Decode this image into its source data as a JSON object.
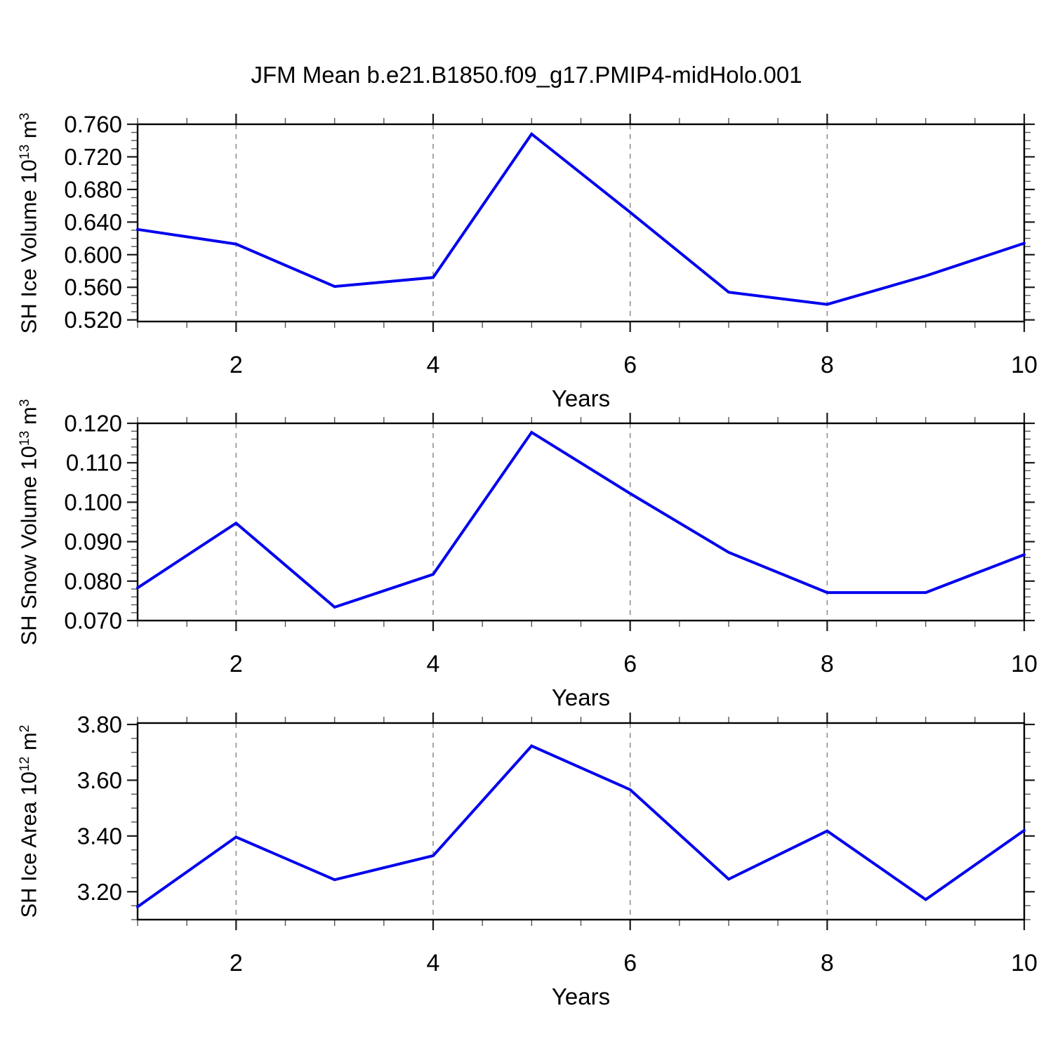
{
  "title": "JFM Mean b.e21.B1850.f09_g17.PMIP4-midHolo.001",
  "colors": {
    "line": "#0000ee",
    "grid": "#8a8a8a",
    "axis": "#000000",
    "minor_tick": "#555555",
    "major_tick": "#1a1a1a"
  },
  "x_axis": {
    "label": "Years",
    "min": 1,
    "max": 10,
    "major_ticks": [
      2,
      4,
      6,
      8,
      10
    ],
    "minor_step": 0.5,
    "gridline_years": [
      2,
      4,
      6,
      8
    ]
  },
  "chart_data": [
    {
      "type": "line",
      "ylabel": "SH Ice Volume 10^13 m^3",
      "ylabel_parts": {
        "base": "SH Ice Volume 10",
        "exp": "13",
        "unit": " m",
        "unit_exp": "3"
      },
      "x": [
        1,
        2,
        3,
        4,
        5,
        6,
        7,
        8,
        9,
        10
      ],
      "values": [
        0.631,
        0.613,
        0.561,
        0.572,
        0.748,
        0.652,
        0.554,
        0.539,
        0.574,
        0.614
      ],
      "ylim": [
        0.518,
        0.76
      ],
      "yticks": {
        "start": 0.52,
        "end": 0.76,
        "step": 0.04,
        "minor_step": 0.01,
        "decimals": 3
      },
      "xlabel": "Years",
      "legend": null,
      "grid": "vertical-dashed"
    },
    {
      "type": "line",
      "ylabel": "SH Snow Volume 10^13 m^3",
      "ylabel_parts": {
        "base": "SH Snow Volume 10",
        "exp": "13",
        "unit": " m",
        "unit_exp": "3"
      },
      "x": [
        1,
        2,
        3,
        4,
        5,
        6,
        7,
        8,
        9,
        10
      ],
      "values": [
        0.0783,
        0.0947,
        0.0734,
        0.0817,
        0.1177,
        0.1022,
        0.0873,
        0.0771,
        0.0771,
        0.0867
      ],
      "ylim": [
        0.07,
        0.12
      ],
      "yticks": {
        "start": 0.07,
        "end": 0.12,
        "step": 0.01,
        "minor_step": 0.002,
        "decimals": 3
      },
      "xlabel": "Years",
      "legend": null,
      "grid": "vertical-dashed"
    },
    {
      "type": "line",
      "ylabel": "SH Ice Area 10^12 m^2",
      "ylabel_parts": {
        "base": "SH Ice Area 10",
        "exp": "12",
        "unit": " m",
        "unit_exp": "2"
      },
      "x": [
        1,
        2,
        3,
        4,
        5,
        6,
        7,
        8,
        9,
        10
      ],
      "values": [
        3.146,
        3.396,
        3.243,
        3.329,
        3.723,
        3.566,
        3.245,
        3.418,
        3.172,
        3.42
      ],
      "ylim": [
        3.1,
        3.805
      ],
      "yticks": {
        "start": 3.2,
        "end": 3.8,
        "step": 0.2,
        "minor_step": 0.05,
        "decimals": 2
      },
      "xlabel": "Years",
      "legend": null,
      "grid": "vertical-dashed"
    }
  ]
}
